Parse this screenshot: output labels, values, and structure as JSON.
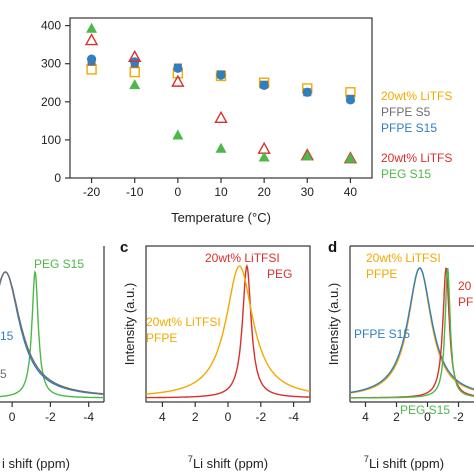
{
  "colors": {
    "orange": "#f2a900",
    "gray": "#6e6e6e",
    "blue": "#2f7fc1",
    "red": "#d9302c",
    "green": "#4db848"
  },
  "chart_data": [
    {
      "type": "scatter",
      "panel": "",
      "xlabel": "Temperature (°C)",
      "ylabel": "",
      "x": [
        -20,
        -10,
        0,
        10,
        20,
        30,
        40
      ],
      "xlim": [
        -25,
        45
      ],
      "ylim": [
        0,
        420
      ],
      "xticks": [
        "-20",
        "-10",
        "0",
        "10",
        "20",
        "30",
        "40"
      ],
      "yticks": [
        "0",
        "100",
        "200",
        "300",
        "400"
      ],
      "legend": [
        "20wt% LiTFS",
        "PFPE S5",
        "PFPE S15",
        "20wt% LiTFS",
        "PEG S15"
      ],
      "series": [
        {
          "name": "20wt% LiTFS",
          "marker": "open-square",
          "color": "orange",
          "values": [
            285,
            278,
            275,
            268,
            250,
            235,
            225
          ]
        },
        {
          "name": "PFPE S5",
          "marker": "filled-square",
          "color": "gray",
          "values": [
            305,
            300,
            290,
            272,
            245,
            225,
            208
          ]
        },
        {
          "name": "PFPE S15",
          "marker": "filled-circle",
          "color": "blue",
          "values": [
            312,
            305,
            288,
            270,
            243,
            225,
            205
          ]
        },
        {
          "name": "20wt% LiTFS",
          "marker": "open-triangle",
          "color": "red",
          "values": [
            362,
            318,
            253,
            158,
            77,
            60,
            52
          ]
        },
        {
          "name": "PEG S15",
          "marker": "filled-triangle",
          "color": "green",
          "values": [
            393,
            245,
            113,
            78,
            55,
            58,
            52
          ]
        }
      ]
    },
    {
      "type": "line",
      "panel": "",
      "xlabel": "i shift (ppm)",
      "xticks": [
        "0",
        "-2",
        "-4"
      ],
      "labels": [
        "PEG S15",
        "15",
        "5"
      ],
      "series": [
        {
          "name": "PEG S15",
          "color": "green",
          "peak": -1.2,
          "width": 0.2
        },
        {
          "name": "PFPE S15",
          "color": "blue",
          "peak": 0.35,
          "width": 0.9
        },
        {
          "name": "PFPE S5",
          "color": "gray",
          "peak": 0.35,
          "width": 0.95
        }
      ]
    },
    {
      "type": "line",
      "panel": "c",
      "xlabel": "Li shift (ppm)",
      "xlabel_sup": "7",
      "ylabel": "Intensity (a.u.)",
      "xticks": [
        "4",
        "2",
        "0",
        "-2",
        "-4"
      ],
      "xlim": [
        5,
        -5
      ],
      "labels": [
        "20wt% LiTFSI",
        "PEG",
        "20wt% LiTFSI",
        "PFPE"
      ],
      "series": [
        {
          "name": "20wt% LiTFSI PEG",
          "color": "red",
          "peak": -1.15,
          "width": 0.32
        },
        {
          "name": "20wt% LiTFSI PFPE",
          "color": "orange",
          "peak": -0.7,
          "width": 1.0
        }
      ]
    },
    {
      "type": "line",
      "panel": "d",
      "xlabel": "Li shift (ppm)",
      "xlabel_sup": "7",
      "ylabel": "Intensity (a.u.)",
      "xticks": [
        "4",
        "2",
        "0",
        "-2"
      ],
      "xlim": [
        5,
        -3
      ],
      "labels": [
        "20wt% LiTFSI",
        "PFPE",
        "PFPE S15",
        "PEG S15",
        "20",
        "PF"
      ],
      "series": [
        {
          "name": "20wt% LiTFSI PFPE",
          "color": "orange",
          "peak": 0.5,
          "width": 0.9
        },
        {
          "name": "PFPE S15",
          "color": "blue",
          "peak": 0.5,
          "width": 0.95
        },
        {
          "name": "20wt% LiTFSI PEG",
          "color": "red",
          "peak": -1.2,
          "width": 0.25
        },
        {
          "name": "PEG S15",
          "color": "green",
          "peak": -1.3,
          "width": 0.2
        }
      ]
    }
  ]
}
